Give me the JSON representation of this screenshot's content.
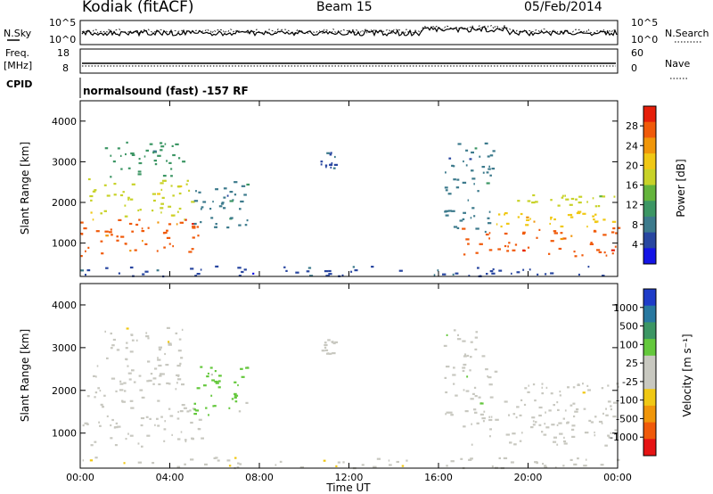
{
  "header": {
    "station": "Kodiak (fitACF)",
    "beam": "Beam 15",
    "date": "05/Feb/2014"
  },
  "top_panels": {
    "nsky_label": "N.Sky",
    "nsky_ticks": [
      "10^5",
      "10^0"
    ],
    "nsearch_label": "N.Search",
    "nsearch_ticks": [
      "10^5",
      "10^0"
    ],
    "freq_label_1": "Freq.",
    "freq_label_2": "[MHz]",
    "freq_ticks": [
      "18",
      "8"
    ],
    "nave_label": "Nave",
    "nave_ticks": [
      "60",
      "0"
    ],
    "cpid_label": "CPID",
    "cpid_text": "normalsound (fast) -157 RF"
  },
  "colors": {
    "power_scale": [
      "#1414e6",
      "#2846a0",
      "#3c7a8c",
      "#3c9664",
      "#64b43c",
      "#c8d228",
      "#f0c814",
      "#f0960a",
      "#f05a0a",
      "#e61e0a"
    ],
    "velocity_scale": [
      "#1e3cc8",
      "#2878a0",
      "#3c9664",
      "#64c83c",
      "#c8c8c0",
      "#c8c8c0",
      "#f0c814",
      "#f0960a",
      "#f05a0a",
      "#e61414"
    ]
  },
  "chart_data": [
    {
      "type": "heatmap",
      "name": "power",
      "xlabel": "Time UT",
      "ylabel": "Slant Range [km]",
      "colorbar_label": "Power [dB]",
      "x_ticks": [
        "00:00",
        "04:00",
        "08:00",
        "12:00",
        "16:00",
        "20:00",
        "00:00"
      ],
      "xlim_hours": [
        0,
        24
      ],
      "y_ticks": [
        "1000",
        "2000",
        "3000",
        "4000"
      ],
      "ylim_km": [
        180,
        4500
      ],
      "colorbar_ticks": [
        "4",
        "8",
        "12",
        "16",
        "20",
        "24",
        "28"
      ],
      "colorbar_range": [
        0,
        32
      ],
      "regions": [
        {
          "t0": 0.0,
          "t1": 5.4,
          "r0": 700,
          "r1": 1600,
          "value": 27
        },
        {
          "t0": 0.3,
          "t1": 5.0,
          "r0": 1600,
          "r1": 2600,
          "value": 18
        },
        {
          "t0": 1.0,
          "t1": 4.6,
          "r0": 2600,
          "r1": 3500,
          "value": 12
        },
        {
          "t0": 5.0,
          "t1": 7.5,
          "r0": 1400,
          "r1": 2600,
          "value": 8
        },
        {
          "t0": 10.7,
          "t1": 11.4,
          "r0": 2850,
          "r1": 3250,
          "value": 6
        },
        {
          "t0": 16.2,
          "t1": 18.5,
          "r0": 1300,
          "r1": 3500,
          "value": 8
        },
        {
          "t0": 17.0,
          "t1": 24.0,
          "r0": 700,
          "r1": 1400,
          "value": 28
        },
        {
          "t0": 18.0,
          "t1": 24.0,
          "r0": 1400,
          "r1": 1800,
          "value": 20
        },
        {
          "t0": 19.5,
          "t1": 24.0,
          "r0": 1900,
          "r1": 2200,
          "value": 16
        },
        {
          "t0": 0.0,
          "t1": 24.0,
          "r0": 200,
          "r1": 450,
          "value": 6
        }
      ]
    },
    {
      "type": "heatmap",
      "name": "velocity",
      "xlabel": "Time UT",
      "ylabel": "Slant Range [km]",
      "colorbar_label": "Velocity [m s⁻¹]",
      "x_ticks": [
        "00:00",
        "04:00",
        "08:00",
        "12:00",
        "16:00",
        "20:00",
        "00:00"
      ],
      "xlim_hours": [
        0,
        24
      ],
      "y_ticks": [
        "1000",
        "2000",
        "3000",
        "4000"
      ],
      "ylim_km": [
        180,
        4500
      ],
      "colorbar_ticks": [
        "1000",
        "500",
        "100",
        "25",
        "-25",
        "-100",
        "-500",
        "-1000"
      ],
      "colorbar_range": [
        -1000,
        1000
      ],
      "regions": [
        {
          "t0": 0.0,
          "t1": 5.4,
          "r0": 700,
          "r1": 1600,
          "value": 0
        },
        {
          "t0": 0.3,
          "t1": 5.0,
          "r0": 1600,
          "r1": 2600,
          "value": 0
        },
        {
          "t0": 1.0,
          "t1": 4.6,
          "r0": 2600,
          "r1": 3500,
          "value": -150
        },
        {
          "t0": 5.0,
          "t1": 7.5,
          "r0": 1400,
          "r1": 2600,
          "value": 200
        },
        {
          "t0": 10.7,
          "t1": 11.4,
          "r0": 2850,
          "r1": 3250,
          "value": 0
        },
        {
          "t0": 16.2,
          "t1": 18.5,
          "r0": 1300,
          "r1": 3500,
          "value": 150
        },
        {
          "t0": 17.0,
          "t1": 24.0,
          "r0": 700,
          "r1": 1400,
          "value": 0
        },
        {
          "t0": 18.0,
          "t1": 24.0,
          "r0": 1400,
          "r1": 1800,
          "value": 0
        },
        {
          "t0": 19.5,
          "t1": 24.0,
          "r0": 1900,
          "r1": 2200,
          "value": -120
        },
        {
          "t0": 0.0,
          "t1": 24.0,
          "r0": 200,
          "r1": 450,
          "value": -150
        }
      ]
    }
  ]
}
